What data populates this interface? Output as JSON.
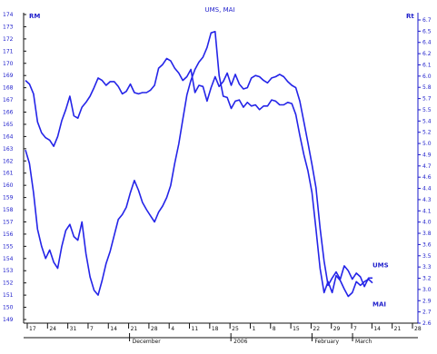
{
  "chart_data": {
    "type": "line",
    "title": "UMS, MAI",
    "left_unit": "RM",
    "right_unit": "Rt",
    "left_axis": {
      "ylim": [
        149,
        174
      ],
      "ticks": [
        "174",
        "173",
        "172",
        "171",
        "170",
        "169",
        "168",
        "167",
        "166",
        "165",
        "164",
        "163",
        "162",
        "161",
        "160",
        "159",
        "158",
        "157",
        "156",
        "155",
        "154",
        "153",
        "152",
        "151",
        "150",
        "149"
      ]
    },
    "right_axis": {
      "ylim": [
        2.6,
        6.7
      ],
      "ticks": [
        "6.7",
        "6.5",
        "6.4",
        "6.2",
        "6.1",
        "6.0",
        "5.8",
        "5.7",
        "5.5",
        "5.4",
        "5.2",
        "5.0",
        "4.9",
        "4.7",
        "4.6",
        "4.4",
        "4.3",
        "4.1",
        "4.0",
        "3.8",
        "3.6",
        "3.5",
        "3.3",
        "3.2",
        "3.0",
        "2.9",
        "2.7",
        "2.6"
      ]
    },
    "x_axis": {
      "tick_labels": [
        "17",
        "24",
        "31",
        "7",
        "14",
        "21",
        "28",
        "4",
        "11",
        "18",
        "25",
        "1",
        "8",
        "15",
        "22",
        "29",
        "7",
        "14",
        "21",
        "28"
      ],
      "month_labels": [
        "December",
        "2006",
        "February",
        "March"
      ]
    },
    "grid": false,
    "series": [
      {
        "name": "UMS",
        "axis": "left",
        "color": "#2424e8",
        "values": [
          168.6,
          168.3,
          167.5,
          165.2,
          164.3,
          163.9,
          163.7,
          163.2,
          164.0,
          165.3,
          166.2,
          167.3,
          165.7,
          165.5,
          166.4,
          166.8,
          167.3,
          168.0,
          168.8,
          168.6,
          168.2,
          168.5,
          168.5,
          168.1,
          167.5,
          167.7,
          168.3,
          167.6,
          167.5,
          167.6,
          167.6,
          167.8,
          168.2,
          169.6,
          169.9,
          170.4,
          170.2,
          169.6,
          169.2,
          168.6,
          168.9,
          169.5,
          167.6,
          168.2,
          168.1,
          166.9,
          168.0,
          168.9,
          168.1,
          168.5,
          169.2,
          168.2,
          169.1,
          168.3,
          167.9,
          168.0,
          168.8,
          169.0,
          168.9,
          168.6,
          168.4,
          168.8,
          168.9,
          169.1,
          168.9,
          168.5,
          168.2,
          168.0,
          166.9,
          165.2,
          163.5,
          161.7,
          159.8,
          156.5,
          153.8,
          151.8,
          152.4,
          152.9,
          152.3,
          153.4,
          153.0,
          152.3,
          152.8,
          152.5,
          151.7,
          152.4,
          152.4
        ]
      },
      {
        "name": "MAI",
        "axis": "left",
        "color": "#2424e8",
        "values": [
          162.9,
          161.8,
          159.4,
          156.4,
          155.0,
          154.0,
          154.7,
          153.7,
          153.2,
          155.0,
          156.3,
          156.8,
          155.8,
          155.5,
          157.0,
          154.4,
          152.5,
          151.4,
          151.0,
          152.2,
          153.6,
          154.6,
          155.9,
          157.2,
          157.6,
          158.2,
          159.4,
          160.4,
          159.6,
          158.6,
          158.0,
          157.5,
          157.0,
          157.8,
          158.3,
          159.0,
          160.0,
          161.8,
          163.4,
          165.4,
          167.4,
          168.6,
          169.5,
          170.1,
          170.5,
          171.3,
          172.5,
          172.6,
          169.0,
          167.3,
          167.2,
          166.3,
          166.9,
          167.0,
          166.4,
          166.8,
          166.5,
          166.6,
          166.2,
          166.5,
          166.5,
          167.0,
          166.9,
          166.6,
          166.6,
          166.8,
          166.7,
          165.8,
          164.1,
          162.5,
          161.2,
          159.4,
          156.4,
          153.2,
          151.2,
          152.1,
          151.2,
          152.6,
          152.2,
          151.5,
          150.9,
          151.2,
          152.1,
          151.8,
          152.1,
          152.3,
          152.0
        ]
      }
    ]
  }
}
